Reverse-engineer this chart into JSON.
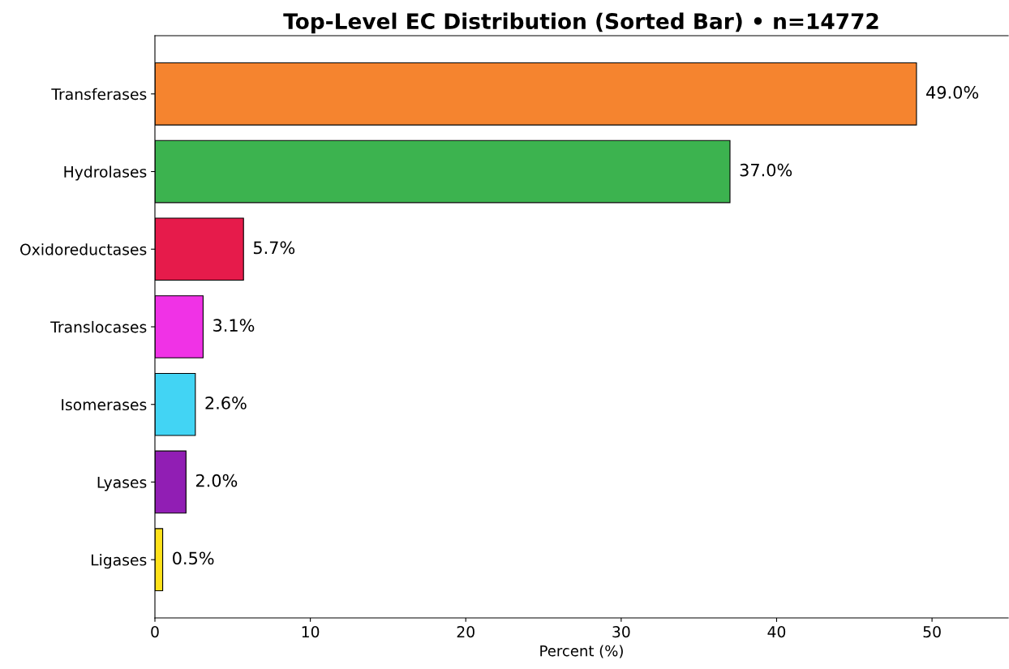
{
  "chart_data": {
    "type": "bar",
    "orientation": "horizontal",
    "title": "Top-Level EC Distribution (Sorted Bar) • n=14772",
    "xlabel": "Percent (%)",
    "categories": [
      "Transferases",
      "Hydrolases",
      "Oxidoreductases",
      "Translocases",
      "Isomerases",
      "Lyases",
      "Ligases"
    ],
    "values": [
      49.0,
      37.0,
      5.7,
      3.1,
      2.6,
      2.0,
      0.5
    ],
    "colors": [
      "#f5842f",
      "#3cb34f",
      "#e61b4b",
      "#f032e6",
      "#42d4f4",
      "#911eb4",
      "#ffe119"
    ],
    "value_labels": [
      "49.0%",
      "37.0%",
      "5.7%",
      "3.1%",
      "2.6%",
      "2.0%",
      "0.5%"
    ],
    "xlim": [
      0,
      54.9
    ],
    "xticks": [
      0,
      10,
      20,
      30,
      40,
      50
    ],
    "grid": false,
    "legend": false
  }
}
